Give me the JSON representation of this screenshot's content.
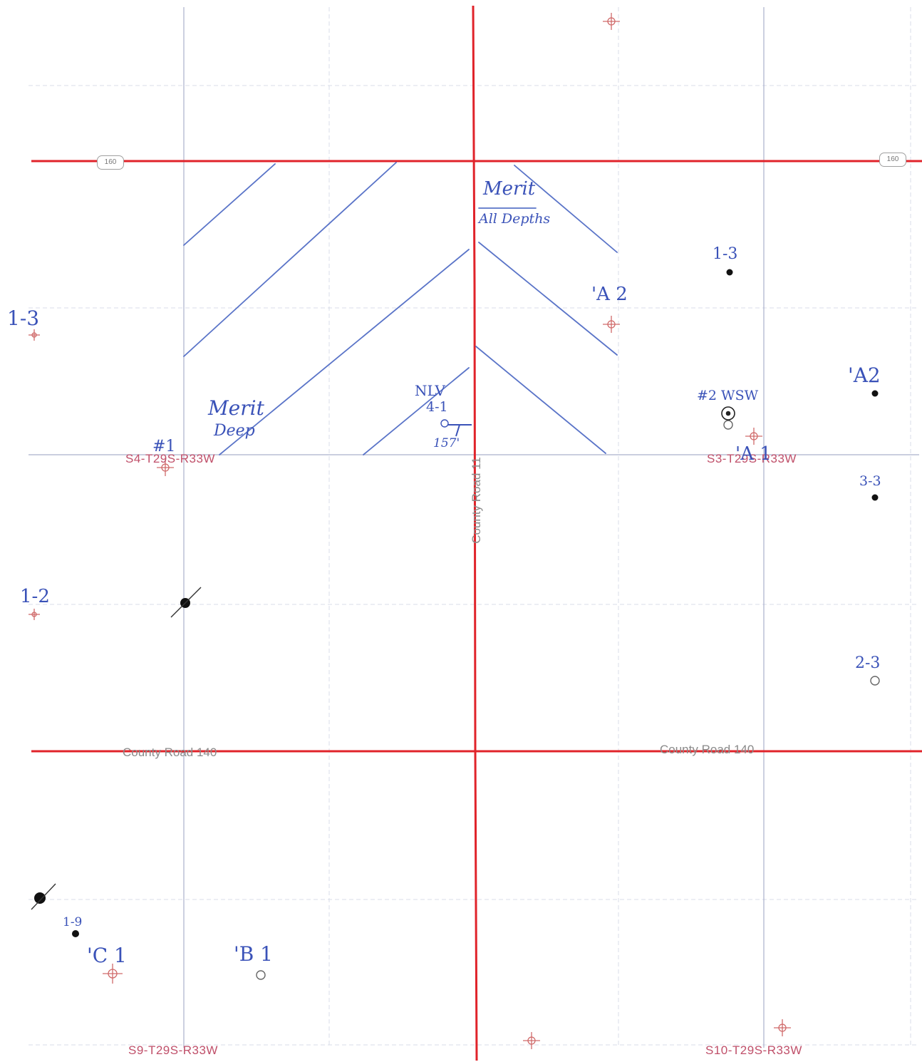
{
  "map": {
    "section_labels": {
      "s4": "S4-T29S-R33W",
      "s3": "S3-T29S-R33W",
      "s9": "S9-T29S-R33W",
      "s10": "S10-T29S-R33W"
    },
    "road_labels": {
      "county_road_11": "County Road 11",
      "county_road_140_west": "County Road 140",
      "county_road_140_east": "County Road 140"
    },
    "highway_shields": {
      "west": "160",
      "east": "160"
    },
    "lease_annotations": {
      "merit_all_depths_title": "Merit",
      "merit_all_depths_sub": "All Depths",
      "merit_deep_title": "Merit",
      "merit_deep_sub": "Deep"
    },
    "well_annotations": {
      "nlv": "NLV",
      "nlv_num": "4-1",
      "nlv_depth": "157'",
      "a2_center": "'A 2",
      "w13_ne": "1-3",
      "w13_w": "1-3",
      "a2_east": "'A2",
      "wsw2": "#2 WSW",
      "a1": "'A 1",
      "w1_s4": "#1",
      "w33": "3-3",
      "w12": "1-2",
      "w23": "2-3",
      "w19": "1-9",
      "c1": "'C 1",
      "b1": "'B 1"
    },
    "colors": {
      "section_line": "#e0232a",
      "grid": "#c9cde0",
      "annotation": "#3a52b8",
      "section_label": "#c0506a",
      "well_symbol": "#d06a6a"
    }
  }
}
